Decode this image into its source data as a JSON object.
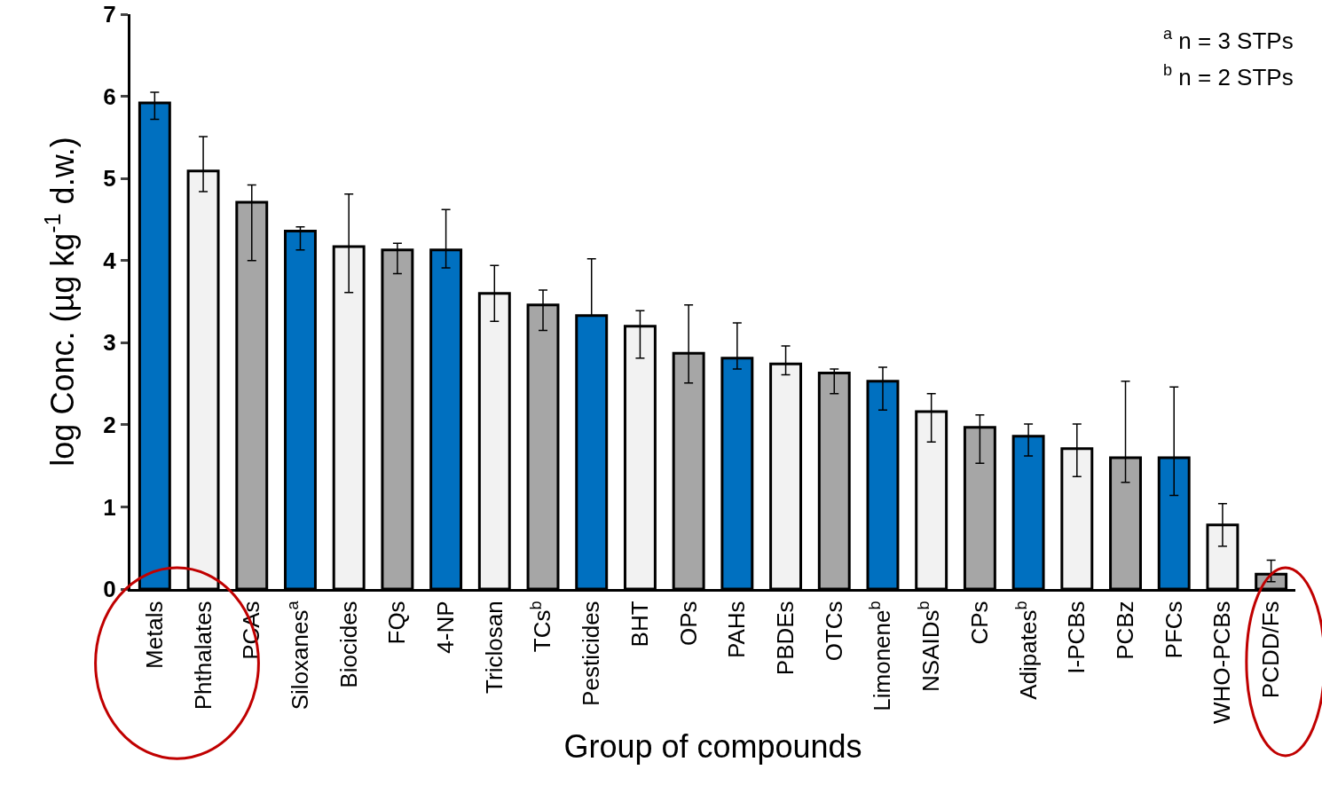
{
  "chart_data": {
    "type": "bar",
    "xlabel": "Group of compounds",
    "ylabel": "log Conc. (µg kg$^{-1}$ d.w.)",
    "categories": [
      "Metals",
      "Phthalates",
      "PCAs",
      "Siloxanes$^{a}$",
      "Biocides",
      "FQs",
      "4-NP",
      "Triclosan",
      "TCs$^{b}$",
      "Pesticides",
      "BHT",
      "OPs",
      "PAHs",
      "PBDEs",
      "OTCs",
      "Limonene$^{b}$",
      "NSAIDs$^{b}$",
      "CPs",
      "Adipates$^{b}$",
      "I-PCBs",
      "PCBz",
      "PFCs",
      "WHO-PCBs",
      "PCDD/Fs"
    ],
    "values": [
      5.92,
      5.09,
      4.71,
      4.36,
      4.17,
      4.13,
      4.13,
      3.6,
      3.46,
      3.33,
      3.2,
      2.87,
      2.81,
      2.74,
      2.63,
      2.53,
      2.16,
      1.97,
      1.86,
      1.71,
      1.6,
      1.6,
      0.78,
      0.18
    ],
    "errors": [
      [
        5.72,
        6.05
      ],
      [
        4.84,
        5.51
      ],
      [
        4.0,
        4.92
      ],
      [
        4.13,
        4.41
      ],
      [
        3.61,
        4.81
      ],
      [
        3.84,
        4.21
      ],
      [
        3.91,
        4.62
      ],
      [
        3.26,
        3.94
      ],
      [
        3.15,
        3.64
      ],
      [
        3.33,
        4.02
      ],
      [
        2.81,
        3.39
      ],
      [
        2.51,
        3.46
      ],
      [
        2.68,
        3.24
      ],
      [
        2.61,
        2.96
      ],
      [
        2.38,
        2.68
      ],
      [
        2.18,
        2.7
      ],
      [
        1.79,
        2.38
      ],
      [
        1.53,
        2.12
      ],
      [
        1.62,
        2.01
      ],
      [
        1.37,
        2.01
      ],
      [
        1.3,
        2.53
      ],
      [
        1.14,
        2.46
      ],
      [
        0.52,
        1.04
      ],
      [
        0.09,
        0.35
      ]
    ],
    "colors": [
      "#0070c0",
      "#f2f2f2",
      "#a6a6a6",
      "#0070c0",
      "#f2f2f2",
      "#a6a6a6",
      "#0070c0",
      "#f2f2f2",
      "#a6a6a6",
      "#0070c0",
      "#f2f2f2",
      "#a6a6a6",
      "#0070c0",
      "#f2f2f2",
      "#a6a6a6",
      "#0070c0",
      "#f2f2f2",
      "#a6a6a6",
      "#0070c0",
      "#f2f2f2",
      "#a6a6a6",
      "#0070c0",
      "#f2f2f2",
      "#a6a6a6"
    ],
    "ylim": [
      0,
      7
    ],
    "yticks": [
      0,
      1,
      2,
      3,
      4,
      5,
      6,
      7
    ],
    "grid": false,
    "annotations": [
      "$^{a}$ n = 3 STPs",
      "$^{b}$ n = 2 STPs"
    ]
  }
}
